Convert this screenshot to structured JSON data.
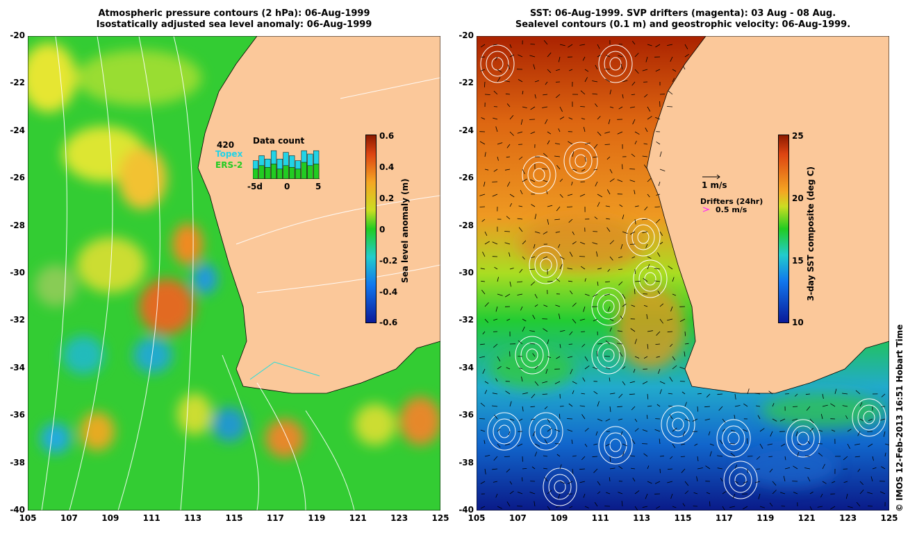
{
  "left_panel": {
    "title_line1": "Atmospheric pressure contours (2 hPa): 06-Aug-1999",
    "title_line2": "Isostatically adjusted sea level anomaly: 06-Aug-1999",
    "colorbar": {
      "title": "Sea level anomaly (m)",
      "ticks": [
        "0.6",
        "0.4",
        "0.2",
        "0",
        "-0.2",
        "-0.4",
        "-0.6"
      ],
      "range": [
        -0.6,
        0.6
      ]
    },
    "inset": {
      "count": "420",
      "topex_label": "Topex",
      "ers_label": "ERS-2",
      "title": "Data count",
      "x_ticks": [
        "-5d",
        "0",
        "5"
      ],
      "topex_color": "#22d3e6",
      "ers_color": "#22cc22",
      "bars_total": [
        0.55,
        0.7,
        0.6,
        0.85,
        0.6,
        0.8,
        0.7,
        0.55,
        0.85,
        0.75,
        0.85
      ],
      "bars_ers": [
        0.3,
        0.4,
        0.35,
        0.45,
        0.3,
        0.4,
        0.35,
        0.3,
        0.5,
        0.4,
        0.45
      ]
    }
  },
  "right_panel": {
    "title_line1": "SST: 06-Aug-1999. SVP drifters (magenta): 03 Aug - 08 Aug.",
    "title_line2": "Sealevel contours (0.1 m) and geostrophic velocity: 06-Aug-1999.",
    "colorbar": {
      "title": "3-day SST composite (deg C)",
      "ticks": [
        "25",
        "20",
        "15",
        "10"
      ],
      "range": [
        10,
        25
      ]
    },
    "velocity_scale_label": "1 m/s",
    "drifters_label": "Drifters (24hr)",
    "drifter_speed_label": "0.5 m/s",
    "drifter_color": "#ff22ff"
  },
  "axes": {
    "lon_ticks": [
      "105",
      "107",
      "109",
      "111",
      "113",
      "115",
      "117",
      "119",
      "121",
      "123",
      "125"
    ],
    "lat_ticks": [
      "-20",
      "-22",
      "-24",
      "-26",
      "-28",
      "-30",
      "-32",
      "-34",
      "-36",
      "-38",
      "-40"
    ],
    "lon_range": [
      105,
      125
    ],
    "lat_range": [
      -40,
      -20
    ]
  },
  "land_color": "#fbc89a",
  "credit": "© IMOS 12-Feb-2013 16:51 Hobart Time"
}
